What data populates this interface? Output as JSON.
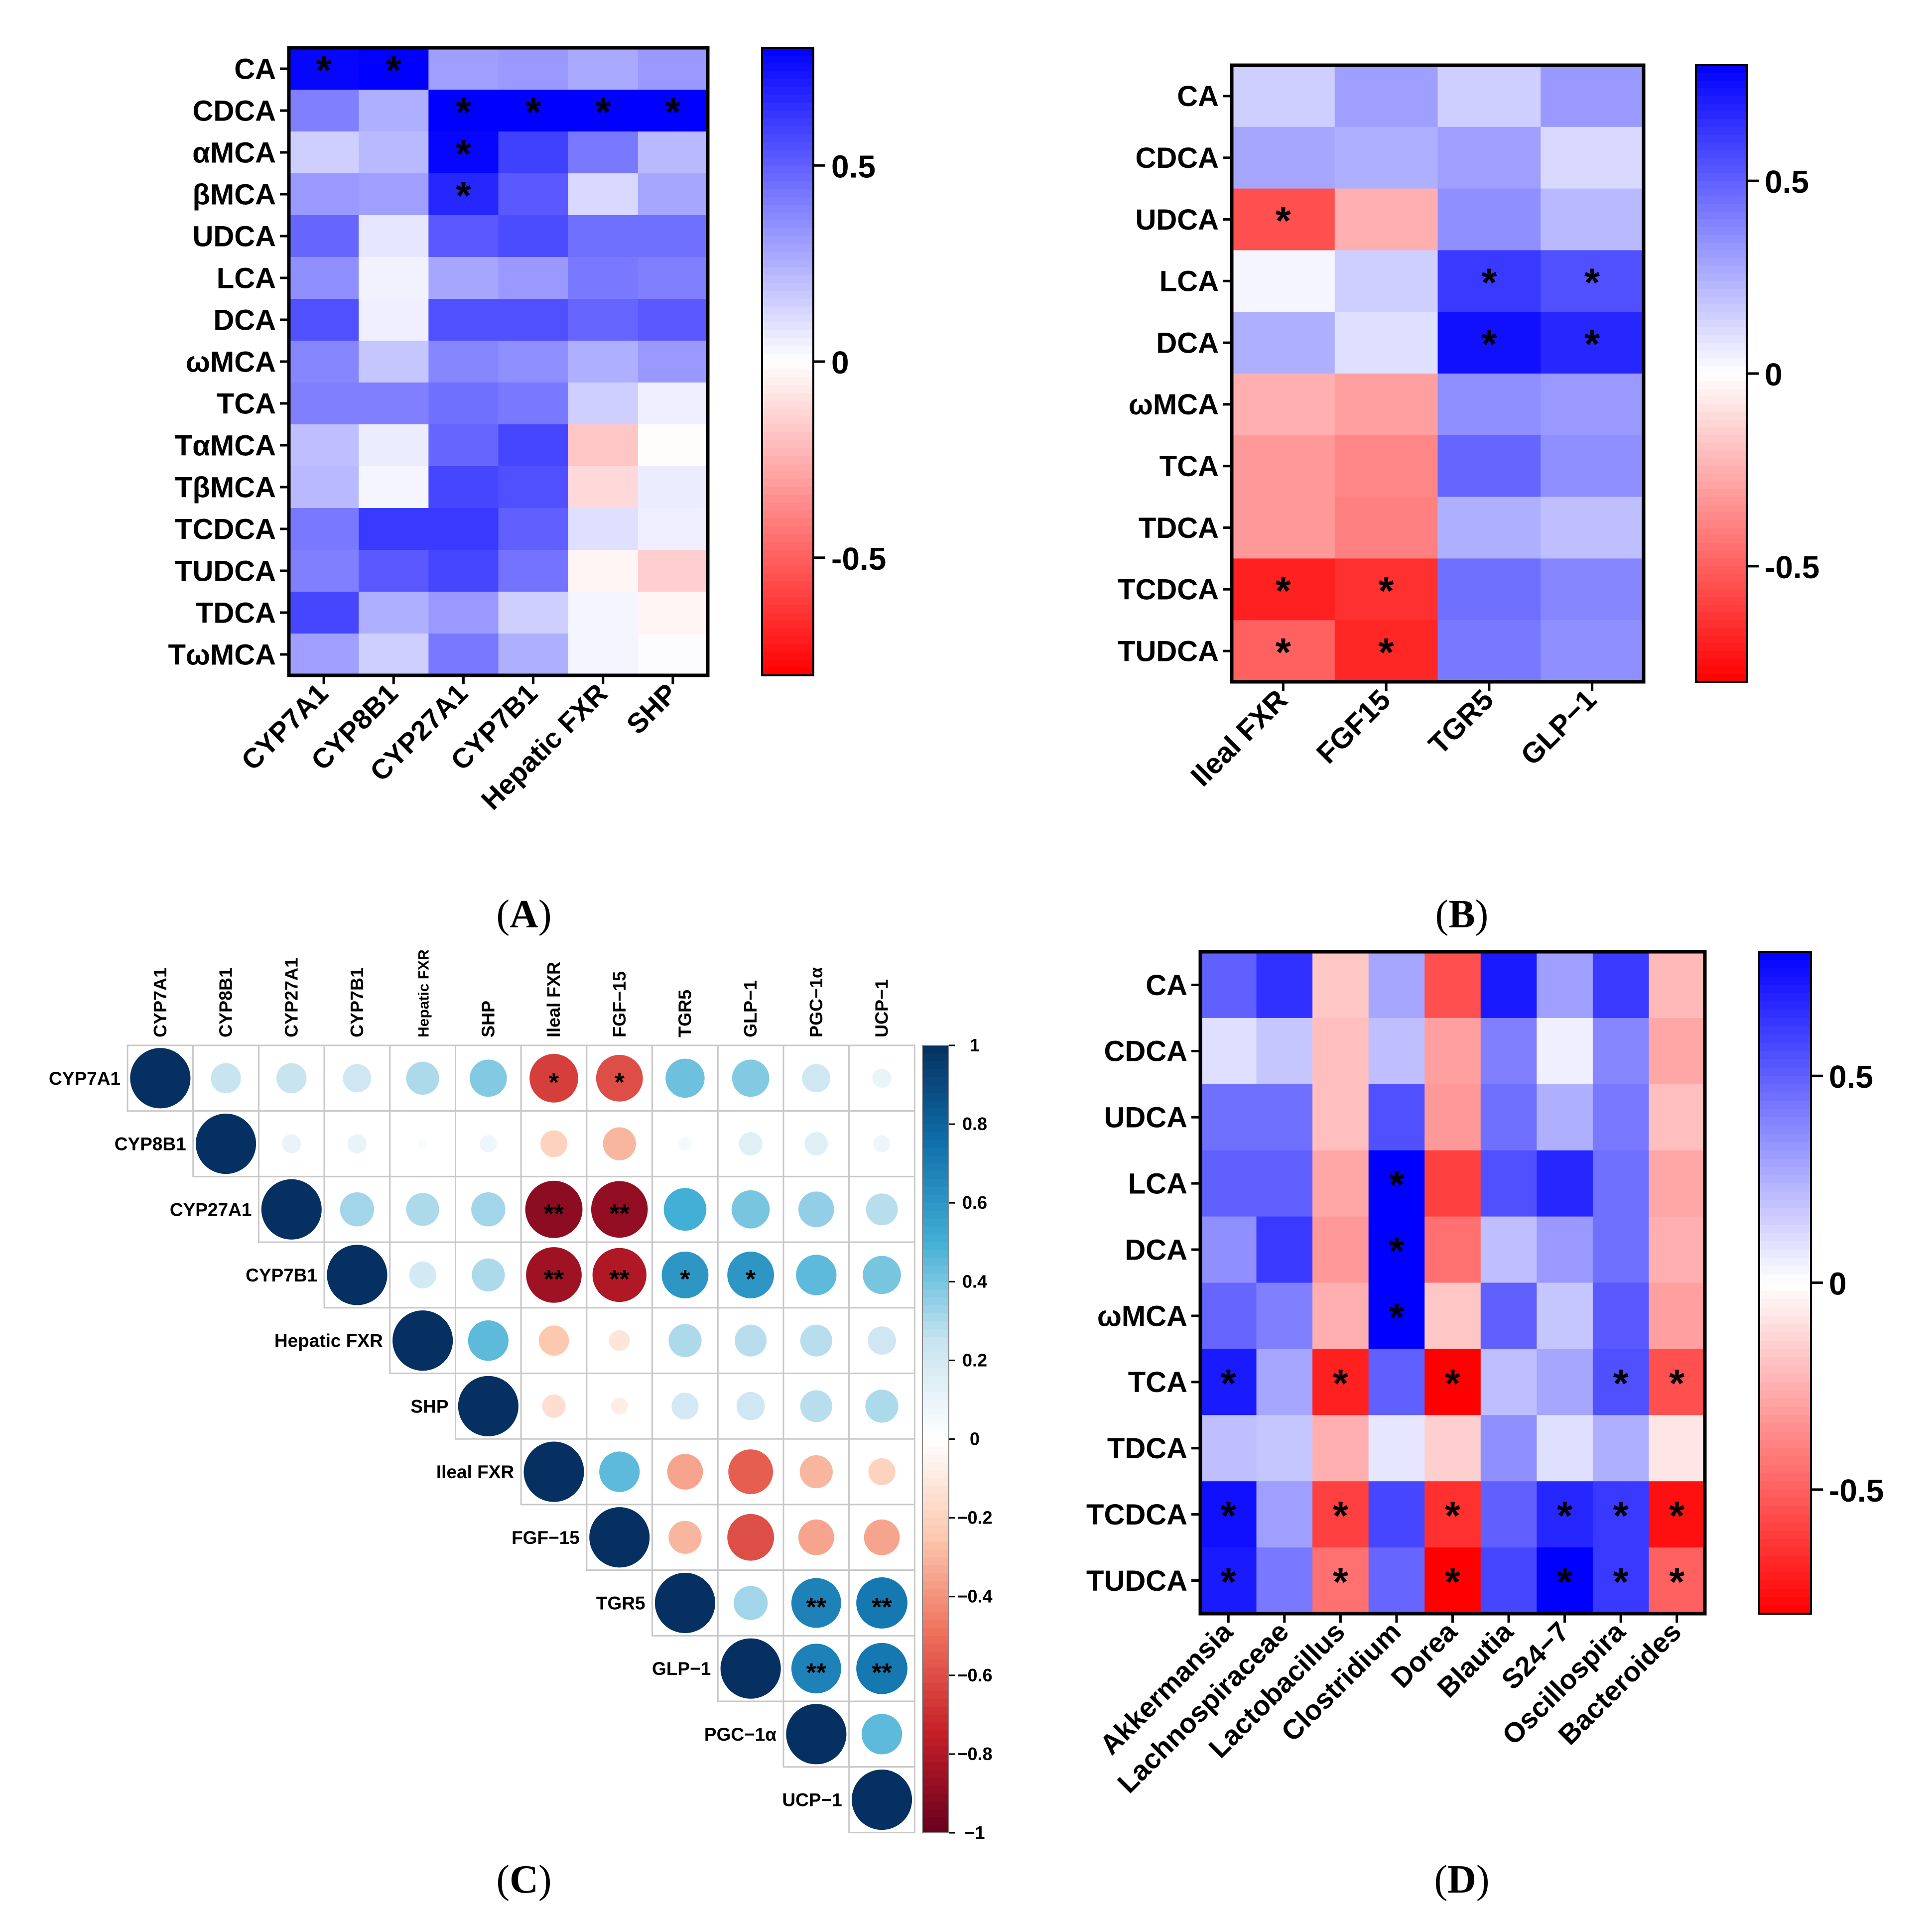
{
  "chart_data": [
    {
      "panel": "A",
      "panel_label_text": "(A)",
      "panel_letter": "A",
      "type": "heatmap",
      "rows": [
        "CA",
        "CDCA",
        "αMCA",
        "βMCA",
        "UDCA",
        "LCA",
        "DCA",
        "ωMCA",
        "TCA",
        "TαMCA",
        "TβMCA",
        "TCDCA",
        "TUDCA",
        "TDCA",
        "TωMCA"
      ],
      "columns": [
        "CYP7A1",
        "CYP8B1",
        "CYP27A1",
        "CYP7B1",
        "Hepatic FXR",
        "SHP"
      ],
      "values": [
        [
          0.78,
          0.82,
          0.3,
          0.32,
          0.27,
          0.32
        ],
        [
          0.4,
          0.25,
          0.82,
          0.85,
          0.85,
          0.85
        ],
        [
          0.15,
          0.22,
          0.78,
          0.6,
          0.42,
          0.22
        ],
        [
          0.32,
          0.3,
          0.68,
          0.52,
          0.12,
          0.28
        ],
        [
          0.48,
          0.08,
          0.52,
          0.56,
          0.45,
          0.45
        ],
        [
          0.35,
          0.04,
          0.28,
          0.32,
          0.42,
          0.4
        ],
        [
          0.55,
          0.05,
          0.55,
          0.55,
          0.48,
          0.52
        ],
        [
          0.38,
          0.18,
          0.38,
          0.35,
          0.25,
          0.32
        ],
        [
          0.4,
          0.4,
          0.45,
          0.42,
          0.15,
          0.05
        ],
        [
          0.2,
          0.06,
          0.48,
          0.58,
          -0.18,
          -0.01
        ],
        [
          0.22,
          0.03,
          0.58,
          0.55,
          -0.12,
          0.06
        ],
        [
          0.42,
          0.62,
          0.62,
          0.5,
          0.1,
          0.05
        ],
        [
          0.4,
          0.52,
          0.58,
          0.44,
          -0.03,
          -0.15
        ],
        [
          0.58,
          0.25,
          0.32,
          0.15,
          0.03,
          -0.03
        ],
        [
          0.3,
          0.15,
          0.42,
          0.25,
          0.03,
          0.01
        ]
      ],
      "significance": [
        [
          "*",
          "*",
          "",
          "",
          "",
          ""
        ],
        [
          "",
          "",
          "*",
          "*",
          "*",
          "*"
        ],
        [
          "",
          "",
          "*",
          "",
          "",
          ""
        ],
        [
          "",
          "",
          "*",
          "",
          "",
          ""
        ],
        [
          "",
          "",
          "",
          "",
          "",
          ""
        ],
        [
          "",
          "",
          "",
          "",
          "",
          ""
        ],
        [
          "",
          "",
          "",
          "",
          "",
          ""
        ],
        [
          "",
          "",
          "",
          "",
          "",
          ""
        ],
        [
          "",
          "",
          "",
          "",
          "",
          ""
        ],
        [
          "",
          "",
          "",
          "",
          "",
          ""
        ],
        [
          "",
          "",
          "",
          "",
          "",
          ""
        ],
        [
          "",
          "",
          "",
          "",
          "",
          ""
        ],
        [
          "",
          "",
          "",
          "",
          "",
          ""
        ],
        [
          "",
          "",
          "",
          "",
          "",
          ""
        ],
        [
          "",
          "",
          "",
          "",
          "",
          ""
        ]
      ],
      "colorbar": {
        "range": [
          -0.8,
          0.8
        ],
        "ticks": [
          0.5,
          0,
          -0.5
        ],
        "tick_labels": [
          "0.5",
          "0",
          "-0.5"
        ]
      }
    },
    {
      "panel": "B",
      "panel_label_text": "(B)",
      "panel_letter": "B",
      "type": "heatmap",
      "rows": [
        "CA",
        "CDCA",
        "UDCA",
        "LCA",
        "DCA",
        "ωMCA",
        "TCA",
        "TDCA",
        "TCDCA",
        "TUDCA"
      ],
      "columns": [
        "Ileal FXR",
        "FGF15",
        "TGR5",
        "GLP−1"
      ],
      "values": [
        [
          0.15,
          0.3,
          0.15,
          0.32
        ],
        [
          0.28,
          0.25,
          0.3,
          0.12
        ],
        [
          -0.55,
          -0.25,
          0.35,
          0.22
        ],
        [
          0.03,
          0.15,
          0.62,
          0.55
        ],
        [
          0.25,
          0.1,
          0.75,
          0.68
        ],
        [
          -0.25,
          -0.3,
          0.35,
          0.32
        ],
        [
          -0.32,
          -0.38,
          0.48,
          0.35
        ],
        [
          -0.32,
          -0.4,
          0.25,
          0.2
        ],
        [
          -0.7,
          -0.65,
          0.45,
          0.38
        ],
        [
          -0.5,
          -0.68,
          0.42,
          0.35
        ]
      ],
      "significance": [
        [
          "",
          "",
          "",
          ""
        ],
        [
          "",
          "",
          "",
          ""
        ],
        [
          "*",
          "",
          "",
          ""
        ],
        [
          "",
          "",
          "*",
          "*"
        ],
        [
          "",
          "",
          "*",
          "*"
        ],
        [
          "",
          "",
          "",
          ""
        ],
        [
          "",
          "",
          "",
          ""
        ],
        [
          "",
          "",
          "",
          ""
        ],
        [
          "*",
          "*",
          "",
          ""
        ],
        [
          "*",
          "*",
          "",
          ""
        ]
      ],
      "colorbar": {
        "range": [
          -0.8,
          0.8
        ],
        "ticks": [
          0.5,
          0,
          -0.5
        ],
        "tick_labels": [
          "0.5",
          "0",
          "-0.5"
        ]
      }
    },
    {
      "panel": "C",
      "panel_label_text": "(C)",
      "panel_letter": "C",
      "type": "correlation-matrix",
      "variables": [
        "CYP7A1",
        "CYP8B1",
        "CYP27A1",
        "CYP7B1",
        "Hepatic FXR",
        "SHP",
        "Ileal FXR",
        "FGF−15",
        "TGR5",
        "GLP−1",
        "PGC−1α",
        "UCP−1"
      ],
      "upper_triangle_values": [
        [
          1.0,
          0.25,
          0.25,
          0.22,
          0.3,
          0.38,
          -0.65,
          -0.6,
          0.42,
          0.38,
          0.22,
          0.1
        ],
        [
          null,
          1.0,
          0.1,
          0.1,
          0.03,
          0.08,
          -0.2,
          -0.3,
          0.05,
          0.15,
          0.15,
          0.08
        ],
        [
          null,
          null,
          1.0,
          0.32,
          0.3,
          0.32,
          -0.9,
          -0.88,
          0.5,
          0.4,
          0.35,
          0.28
        ],
        [
          null,
          null,
          null,
          1.0,
          0.2,
          0.3,
          -0.85,
          -0.8,
          0.6,
          0.6,
          0.45,
          0.4
        ],
        [
          null,
          null,
          null,
          null,
          1.0,
          0.45,
          -0.25,
          -0.12,
          0.3,
          0.28,
          0.28,
          0.22
        ],
        [
          null,
          null,
          null,
          null,
          null,
          1.0,
          -0.15,
          -0.08,
          0.2,
          0.22,
          0.28,
          0.3
        ],
        [
          null,
          null,
          null,
          null,
          null,
          null,
          1.0,
          0.45,
          -0.35,
          -0.55,
          -0.3,
          -0.2
        ],
        [
          null,
          null,
          null,
          null,
          null,
          null,
          null,
          1.0,
          -0.3,
          -0.6,
          -0.35,
          -0.35
        ],
        [
          null,
          null,
          null,
          null,
          null,
          null,
          null,
          null,
          1.0,
          0.32,
          0.68,
          0.72
        ],
        [
          null,
          null,
          null,
          null,
          null,
          null,
          null,
          null,
          null,
          1.0,
          0.68,
          0.72
        ],
        [
          null,
          null,
          null,
          null,
          null,
          null,
          null,
          null,
          null,
          null,
          1.0,
          0.45
        ],
        [
          null,
          null,
          null,
          null,
          null,
          null,
          null,
          null,
          null,
          null,
          null,
          1.0
        ]
      ],
      "significance_marks": [
        {
          "row": "CYP7A1",
          "col": "Ileal FXR",
          "mark": "*"
        },
        {
          "row": "CYP7A1",
          "col": "FGF−15",
          "mark": "*"
        },
        {
          "row": "CYP27A1",
          "col": "Ileal FXR",
          "mark": "**"
        },
        {
          "row": "CYP27A1",
          "col": "FGF−15",
          "mark": "**"
        },
        {
          "row": "CYP7B1",
          "col": "Ileal FXR",
          "mark": "**"
        },
        {
          "row": "CYP7B1",
          "col": "FGF−15",
          "mark": "**"
        },
        {
          "row": "CYP7B1",
          "col": "TGR5",
          "mark": "*"
        },
        {
          "row": "CYP7B1",
          "col": "GLP−1",
          "mark": "*"
        },
        {
          "row": "TGR5",
          "col": "PGC−1α",
          "mark": "**"
        },
        {
          "row": "TGR5",
          "col": "UCP−1",
          "mark": "**"
        },
        {
          "row": "GLP−1",
          "col": "PGC−1α",
          "mark": "**"
        },
        {
          "row": "GLP−1",
          "col": "UCP−1",
          "mark": "**"
        }
      ],
      "colorbar": {
        "range": [
          -1,
          1
        ],
        "ticks": [
          1,
          0.8,
          0.6,
          0.4,
          0.2,
          0,
          -0.2,
          -0.4,
          -0.6,
          -0.8,
          -1
        ],
        "tick_labels": [
          "1",
          "0.8",
          "0.6",
          "0.4",
          "0.2",
          "0",
          "−0.2",
          "−0.4",
          "−0.6",
          "−0.8",
          "−1"
        ]
      }
    },
    {
      "panel": "D",
      "panel_label_text": "(D)",
      "panel_letter": "D",
      "type": "heatmap",
      "rows": [
        "CA",
        "CDCA",
        "UDCA",
        "LCA",
        "DCA",
        "ωMCA",
        "TCA",
        "TDCA",
        "TCDCA",
        "TUDCA"
      ],
      "columns": [
        "Akkermansia",
        "Lachnospiraceae",
        "Lactobacillus",
        "Clostridium",
        "Dorea",
        "Blautia",
        "S24−7",
        "Oscillospira",
        "Bacteroides"
      ],
      "values": [
        [
          0.5,
          0.65,
          -0.18,
          0.28,
          -0.55,
          0.72,
          0.3,
          0.62,
          -0.22
        ],
        [
          0.1,
          0.18,
          -0.2,
          0.2,
          -0.3,
          0.4,
          0.05,
          0.38,
          -0.28
        ],
        [
          0.45,
          0.45,
          -0.2,
          0.55,
          -0.32,
          0.45,
          0.25,
          0.42,
          -0.2
        ],
        [
          0.5,
          0.5,
          -0.28,
          0.82,
          -0.6,
          0.55,
          0.68,
          0.45,
          -0.28
        ],
        [
          0.35,
          0.62,
          -0.32,
          0.82,
          -0.45,
          0.2,
          0.32,
          0.45,
          -0.25
        ],
        [
          0.48,
          0.4,
          -0.25,
          0.85,
          -0.18,
          0.5,
          0.18,
          0.52,
          -0.3
        ],
        [
          0.72,
          0.28,
          -0.7,
          0.5,
          -0.8,
          0.2,
          0.28,
          0.55,
          -0.55
        ],
        [
          0.2,
          0.18,
          -0.25,
          0.08,
          -0.15,
          0.35,
          0.1,
          0.25,
          -0.08
        ],
        [
          0.75,
          0.3,
          -0.6,
          0.58,
          -0.65,
          0.5,
          0.68,
          0.62,
          -0.75
        ],
        [
          0.72,
          0.42,
          -0.45,
          0.48,
          -0.8,
          0.58,
          0.82,
          0.62,
          -0.5
        ]
      ],
      "significance": [
        [
          "",
          "",
          "",
          "",
          "",
          "",
          "",
          "",
          ""
        ],
        [
          "",
          "",
          "",
          "",
          "",
          "",
          "",
          "",
          ""
        ],
        [
          "",
          "",
          "",
          "",
          "",
          "",
          "",
          "",
          ""
        ],
        [
          "",
          "",
          "",
          "*",
          "",
          "",
          "",
          "",
          ""
        ],
        [
          "",
          "",
          "",
          "*",
          "",
          "",
          "",
          "",
          ""
        ],
        [
          "",
          "",
          "",
          "*",
          "",
          "",
          "",
          "",
          ""
        ],
        [
          "*",
          "",
          "*",
          "",
          "*",
          "",
          "",
          "*",
          "*"
        ],
        [
          "",
          "",
          "",
          "",
          "",
          "",
          "",
          "",
          ""
        ],
        [
          "*",
          "",
          "*",
          "",
          "*",
          "",
          "*",
          "*",
          "*"
        ],
        [
          "*",
          "",
          "*",
          "",
          "*",
          "",
          "*",
          "*",
          "*"
        ]
      ],
      "colorbar": {
        "range": [
          -0.8,
          0.8
        ],
        "ticks": [
          0.5,
          0,
          -0.5
        ],
        "tick_labels": [
          "0.5",
          "0",
          "-0.5"
        ]
      }
    }
  ]
}
